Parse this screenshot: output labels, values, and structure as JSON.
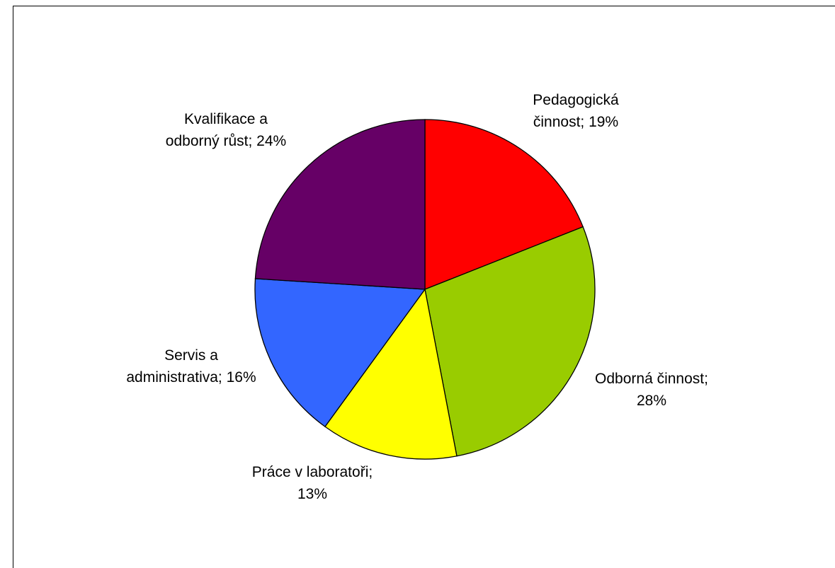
{
  "chart_data": {
    "type": "pie",
    "title": "",
    "start_angle_deg": 0,
    "direction": "clockwise",
    "slices": [
      {
        "label": "Pedagogická činnost",
        "value": 19,
        "display": "19%",
        "color": "#FF0000",
        "label_lines": [
          "Pedagogická",
          "činnost; 19%"
        ]
      },
      {
        "label": "Odborná činnost",
        "value": 28,
        "display": "28%",
        "color": "#99CC00",
        "label_lines": [
          "Odborná činnost;",
          "28%"
        ]
      },
      {
        "label": "Práce v laboratoři",
        "value": 13,
        "display": "13%",
        "color": "#FFFF00",
        "label_lines": [
          "Práce v laboratoři;",
          "13%"
        ]
      },
      {
        "label": "Servis a administrativa",
        "value": 16,
        "display": "16%",
        "color": "#3366FF",
        "label_lines": [
          "Servis a",
          "administrativa; 16%"
        ]
      },
      {
        "label": "Kvalifikace a odborný růst",
        "value": 24,
        "display": "24%",
        "color": "#660066",
        "label_lines": [
          "Kvalifikace a",
          "odborný růst; 24%"
        ]
      }
    ]
  }
}
